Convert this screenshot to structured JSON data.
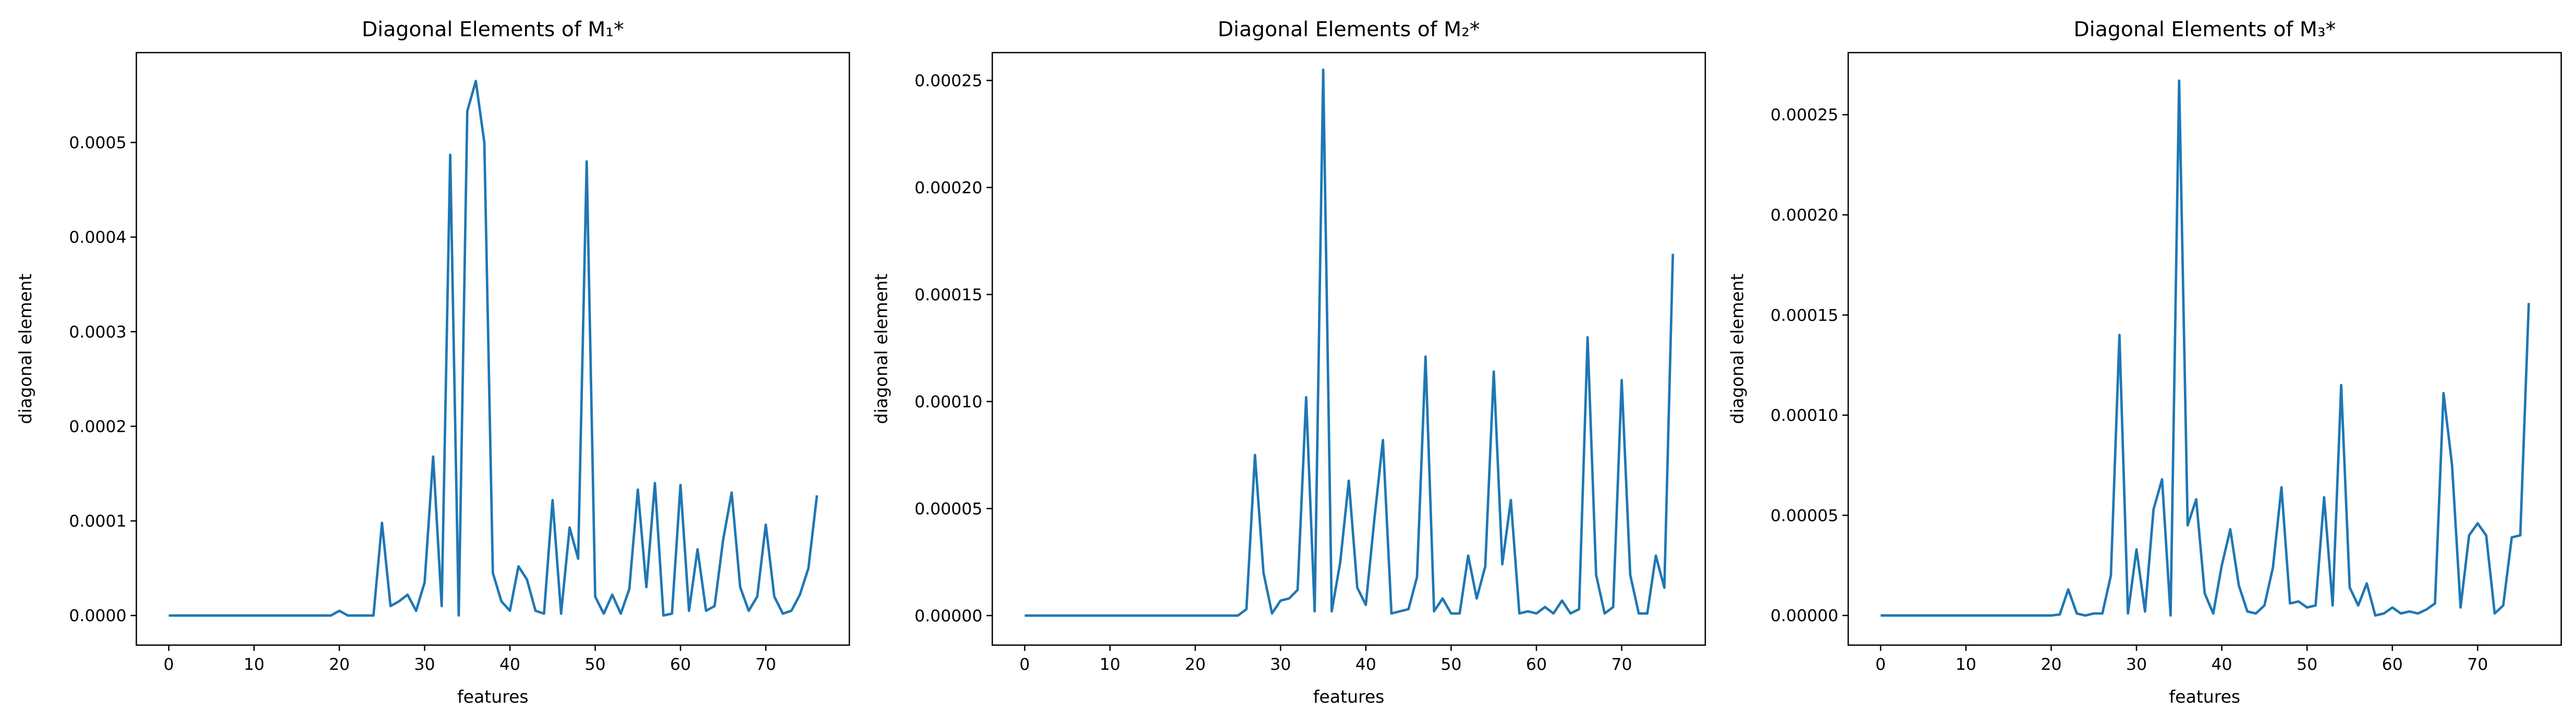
{
  "chart_data": [
    {
      "type": "line",
      "title": "Diagonal Elements of M₁*",
      "x_label": "features",
      "y_label": "diagonal element",
      "color": "#1f77b4",
      "x": [
        0,
        1,
        2,
        3,
        4,
        5,
        6,
        7,
        8,
        9,
        10,
        11,
        12,
        13,
        14,
        15,
        16,
        17,
        18,
        19,
        20,
        21,
        22,
        23,
        24,
        25,
        26,
        27,
        28,
        29,
        30,
        31,
        32,
        33,
        34,
        35,
        36,
        37,
        38,
        39,
        40,
        41,
        42,
        43,
        44,
        45,
        46,
        47,
        48,
        49,
        50,
        51,
        52,
        53,
        54,
        55,
        56,
        57,
        58,
        59,
        60,
        61,
        62,
        63,
        64,
        65,
        66,
        67,
        68,
        69,
        70,
        71,
        72,
        73,
        74,
        75,
        76
      ],
      "values": [
        0,
        0,
        0,
        0,
        0,
        0,
        0,
        0,
        0,
        0,
        0,
        0,
        0,
        0,
        0,
        0,
        0,
        0,
        0,
        0,
        5e-06,
        0,
        0,
        0,
        0,
        9.8e-05,
        1e-05,
        1.5e-05,
        2.2e-05,
        5e-06,
        3.5e-05,
        0.000168,
        1e-05,
        0.000487,
        0,
        0.000533,
        0.000565,
        0.0005,
        4.5e-05,
        1.5e-05,
        5e-06,
        5.2e-05,
        3.8e-05,
        5e-06,
        2e-06,
        0.000122,
        2e-06,
        9.3e-05,
        6e-05,
        0.00048,
        2e-05,
        2e-06,
        2.2e-05,
        2e-06,
        2.8e-05,
        0.000133,
        3e-05,
        0.00014,
        0,
        2e-06,
        0.000138,
        5e-06,
        7e-05,
        5e-06,
        1e-05,
        8e-05,
        0.00013,
        3e-05,
        5e-06,
        2e-05,
        9.6e-05,
        2e-05,
        2e-06,
        5e-06,
        2.2e-05,
        5e-05,
        0.000127
      ],
      "xlim": [
        -3.8,
        79.8
      ],
      "xticks": [
        0,
        10,
        20,
        30,
        40,
        50,
        60,
        70
      ],
      "ylim": [
        -3.13e-05,
        0.000595
      ],
      "yticks": [
        {
          "value": 0,
          "label": "0.0000"
        },
        {
          "value": 0.0001,
          "label": "0.0001"
        },
        {
          "value": 0.0002,
          "label": "0.0002"
        },
        {
          "value": 0.0003,
          "label": "0.0003"
        },
        {
          "value": 0.0004,
          "label": "0.0004"
        },
        {
          "value": 0.0005,
          "label": "0.0005"
        }
      ]
    },
    {
      "type": "line",
      "title": "Diagonal Elements of M₂*",
      "x_label": "features",
      "y_label": "diagonal element",
      "color": "#1f77b4",
      "x": [
        0,
        1,
        2,
        3,
        4,
        5,
        6,
        7,
        8,
        9,
        10,
        11,
        12,
        13,
        14,
        15,
        16,
        17,
        18,
        19,
        20,
        21,
        22,
        23,
        24,
        25,
        26,
        27,
        28,
        29,
        30,
        31,
        32,
        33,
        34,
        35,
        36,
        37,
        38,
        39,
        40,
        41,
        42,
        43,
        44,
        45,
        46,
        47,
        48,
        49,
        50,
        51,
        52,
        53,
        54,
        55,
        56,
        57,
        58,
        59,
        60,
        61,
        62,
        63,
        64,
        65,
        66,
        67,
        68,
        69,
        70,
        71,
        72,
        73,
        74,
        75,
        76
      ],
      "values": [
        0,
        0,
        0,
        0,
        0,
        0,
        0,
        0,
        0,
        0,
        0,
        0,
        0,
        0,
        0,
        0,
        0,
        0,
        0,
        0,
        0,
        0,
        0,
        0,
        0,
        0,
        3e-06,
        7.5e-05,
        2e-05,
        1e-06,
        7e-06,
        8e-06,
        1.2e-05,
        0.000102,
        2e-06,
        0.000255,
        2e-06,
        2.5e-05,
        6.3e-05,
        1.3e-05,
        5e-06,
        4.5e-05,
        8.2e-05,
        1e-06,
        2e-06,
        3e-06,
        1.8e-05,
        0.000121,
        2e-06,
        8e-06,
        1e-06,
        1e-06,
        2.8e-05,
        8e-06,
        2.3e-05,
        0.000114,
        2.4e-05,
        5.4e-05,
        1e-06,
        2e-06,
        1e-06,
        4e-06,
        1e-06,
        7e-06,
        1e-06,
        3e-06,
        0.00013,
        1.9e-05,
        1e-06,
        4e-06,
        0.00011,
        1.9e-05,
        1e-06,
        1e-06,
        2.8e-05,
        1.3e-05,
        0.000169
      ],
      "xlim": [
        -3.8,
        79.8
      ],
      "xticks": [
        0,
        10,
        20,
        30,
        40,
        50,
        60,
        70
      ],
      "ylim": [
        -1.38e-05,
        0.000263
      ],
      "yticks": [
        {
          "value": 0,
          "label": "0.00000"
        },
        {
          "value": 5e-05,
          "label": "0.00005"
        },
        {
          "value": 0.0001,
          "label": "0.00010"
        },
        {
          "value": 0.00015,
          "label": "0.00015"
        },
        {
          "value": 0.0002,
          "label": "0.00020"
        },
        {
          "value": 0.00025,
          "label": "0.00025"
        }
      ]
    },
    {
      "type": "line",
      "title": "Diagonal Elements of M₃*",
      "x_label": "features",
      "y_label": "diagonal element",
      "color": "#1f77b4",
      "x": [
        0,
        1,
        2,
        3,
        4,
        5,
        6,
        7,
        8,
        9,
        10,
        11,
        12,
        13,
        14,
        15,
        16,
        17,
        18,
        19,
        20,
        21,
        22,
        23,
        24,
        25,
        26,
        27,
        28,
        29,
        30,
        31,
        32,
        33,
        34,
        35,
        36,
        37,
        38,
        39,
        40,
        41,
        42,
        43,
        44,
        45,
        46,
        47,
        48,
        49,
        50,
        51,
        52,
        53,
        54,
        55,
        56,
        57,
        58,
        59,
        60,
        61,
        62,
        63,
        64,
        65,
        66,
        67,
        68,
        69,
        70,
        71,
        72,
        73,
        74,
        75,
        76
      ],
      "values": [
        0,
        0,
        0,
        0,
        0,
        0,
        0,
        0,
        0,
        0,
        0,
        0,
        0,
        0,
        0,
        0,
        0,
        0,
        0,
        0,
        0,
        5e-07,
        1.3e-05,
        1e-06,
        0,
        1e-06,
        1e-06,
        2e-05,
        0.00014,
        1e-06,
        3.3e-05,
        2e-06,
        5.3e-05,
        6.8e-05,
        0,
        0.000267,
        4.5e-05,
        5.8e-05,
        1.1e-05,
        1e-06,
        2.5e-05,
        4.3e-05,
        1.5e-05,
        2e-06,
        1e-06,
        5e-06,
        2.4e-05,
        6.4e-05,
        6e-06,
        7e-06,
        4e-06,
        5e-06,
        5.9e-05,
        5e-06,
        0.000115,
        1.4e-05,
        5e-06,
        1.6e-05,
        0,
        1e-06,
        4e-06,
        1e-06,
        2e-06,
        1e-06,
        3e-06,
        6e-06,
        0.000111,
        7.5e-05,
        4e-06,
        4e-05,
        4.6e-05,
        4e-05,
        1e-06,
        5e-06,
        3.9e-05,
        4e-05,
        0.000156
      ],
      "xlim": [
        -3.8,
        79.8
      ],
      "xticks": [
        0,
        10,
        20,
        30,
        40,
        50,
        60,
        70
      ],
      "ylim": [
        -1.48e-05,
        0.000281
      ],
      "yticks": [
        {
          "value": 0,
          "label": "0.00000"
        },
        {
          "value": 5e-05,
          "label": "0.00005"
        },
        {
          "value": 0.0001,
          "label": "0.00010"
        },
        {
          "value": 0.00015,
          "label": "0.00015"
        },
        {
          "value": 0.0002,
          "label": "0.00020"
        },
        {
          "value": 0.00025,
          "label": "0.00025"
        }
      ]
    }
  ]
}
